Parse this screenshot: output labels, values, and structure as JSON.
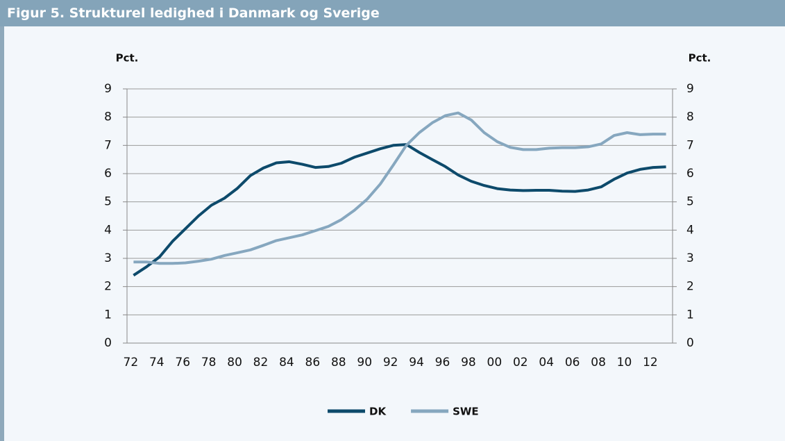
{
  "chart_data": {
    "type": "line",
    "title": "Figur 5. Strukturel ledighed i Danmark og Sverige",
    "ylabel": "Pct.",
    "y2label": "Pct.",
    "categories": [
      "72",
      null,
      "74",
      null,
      "76",
      null,
      "78",
      null,
      "80",
      null,
      "82",
      null,
      "84",
      null,
      "86",
      null,
      "88",
      null,
      "90",
      null,
      "92",
      null,
      "94",
      null,
      "96",
      null,
      "98",
      null,
      "00",
      null,
      "02",
      null,
      "04",
      null,
      "06",
      null,
      "08",
      null,
      "10",
      null,
      "12",
      null
    ],
    "series": [
      {
        "name": "DK",
        "color": "#0d4a6b",
        "values": [
          2.4,
          2.7,
          3.05,
          3.6,
          4.05,
          4.5,
          4.88,
          5.13,
          5.48,
          5.93,
          6.2,
          6.38,
          6.42,
          6.33,
          6.22,
          6.25,
          6.37,
          6.58,
          6.73,
          6.88,
          7.0,
          7.03,
          6.75,
          6.5,
          6.25,
          5.95,
          5.73,
          5.58,
          5.47,
          5.42,
          5.4,
          5.41,
          5.41,
          5.38,
          5.37,
          5.42,
          5.53,
          5.8,
          6.02,
          6.15,
          6.22,
          6.24
        ]
      },
      {
        "name": "SWE",
        "color": "#86a7bf",
        "values": [
          2.87,
          2.87,
          2.82,
          2.82,
          2.84,
          2.9,
          2.97,
          3.1,
          3.2,
          3.3,
          3.46,
          3.63,
          3.73,
          3.83,
          3.98,
          4.13,
          4.37,
          4.7,
          5.1,
          5.63,
          6.3,
          7.0,
          7.45,
          7.8,
          8.05,
          8.15,
          7.9,
          7.45,
          7.13,
          6.93,
          6.85,
          6.85,
          6.9,
          6.92,
          6.92,
          6.95,
          7.05,
          7.35,
          7.45,
          7.38,
          7.4,
          7.4
        ]
      }
    ],
    "ylim": [
      0,
      9
    ],
    "yticks": [
      0,
      1,
      2,
      3,
      4,
      5,
      6,
      7,
      8,
      9
    ],
    "y2lim": [
      0,
      9
    ],
    "y2ticks": [
      0,
      1,
      2,
      3,
      4,
      5,
      6,
      7,
      8,
      9
    ],
    "grid": true,
    "legend": "bottom"
  }
}
